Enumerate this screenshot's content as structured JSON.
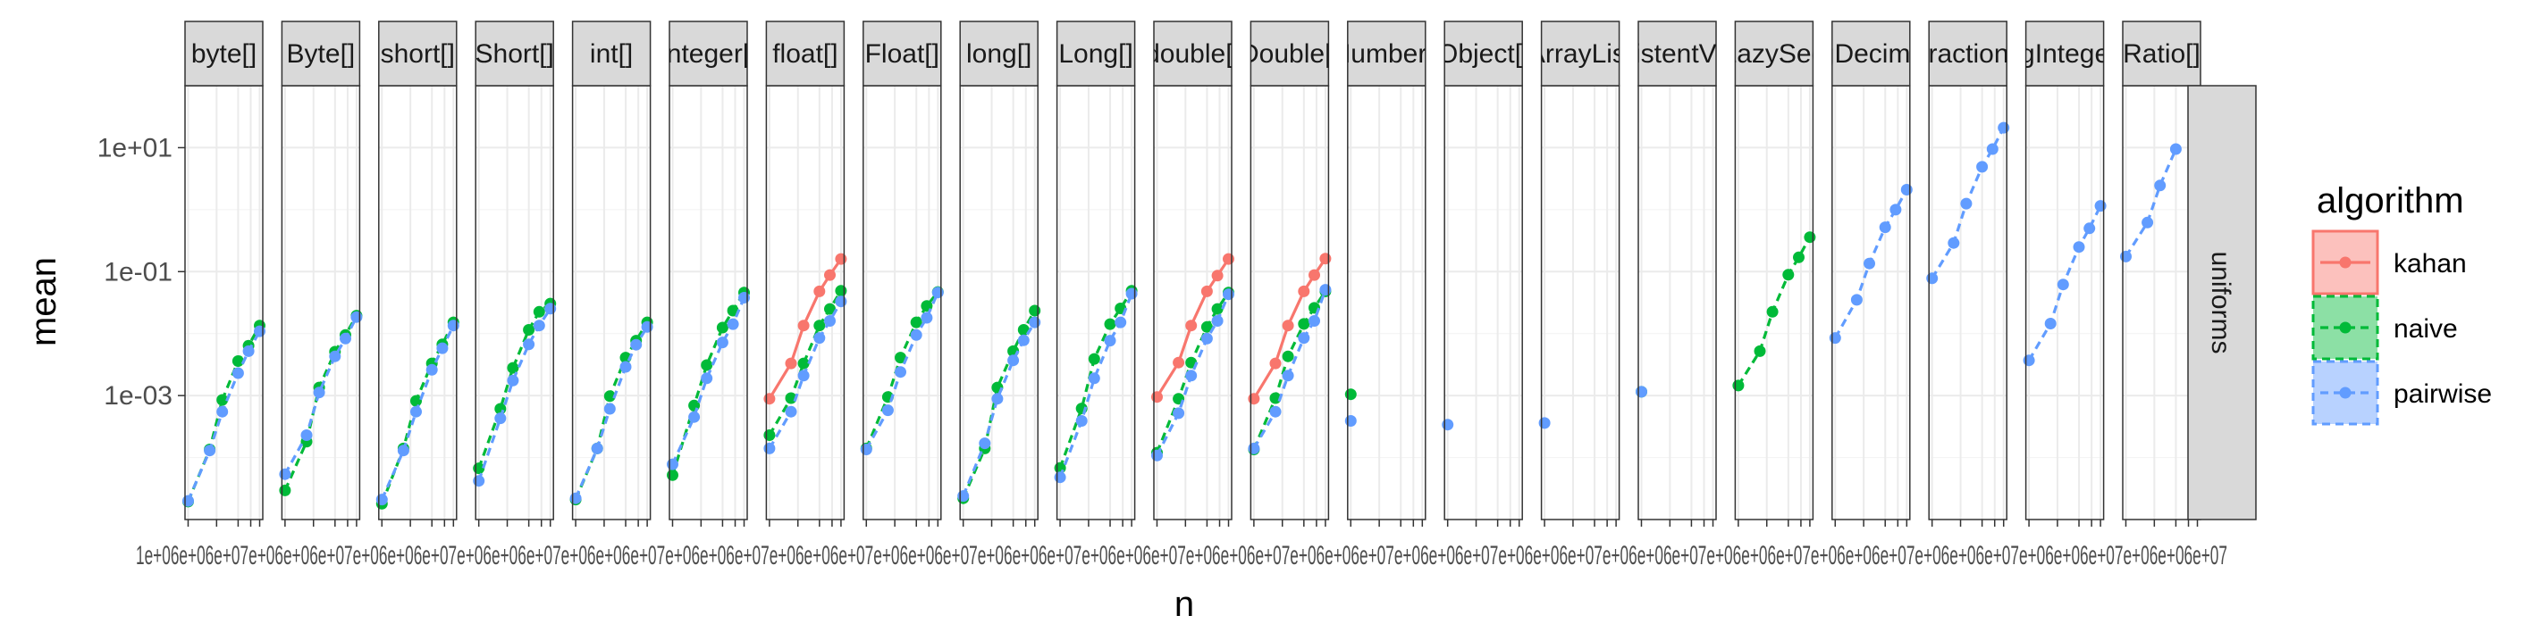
{
  "chart_data": {
    "type": "line",
    "xlabel": "n",
    "ylabel": "mean",
    "y_scale": "log10",
    "y_range": [
      1e-05,
      100
    ],
    "y_ticks": [
      0.001,
      0.1,
      10
    ],
    "y_tick_labels": [
      "1e-03",
      "1e-01",
      "1e+01"
    ],
    "x_scale": "log10",
    "x_range": [
      1000000,
      10000000
    ],
    "x_ticks": [
      1000000,
      2500000,
      5000000,
      7500000,
      10000000
    ],
    "x_tick_text": "1e+06e+06e+07e+06e+06e+07e+06e+06e+07e+06e+06e+07e+06e+06e+07e+06e+06e+07e+06e+06e+07e+06e+06e+07e+06e+06e+07e+06e+06e+07e+06e+06e+07e+06e+06e+07e+06e+06e+07e+06e+06e+07e+06e+06e+07e+06e+06e+07e+06e+06e+07e+06e+06e+07e+06e+06e+07e+06e+06e+07",
    "x_values": [
      1000000,
      2000000,
      3000000,
      5000000,
      7000000,
      10000000
    ],
    "row_strip": "uniforms",
    "legend": {
      "title": "algorithm",
      "position": "right",
      "entries": [
        "kahan",
        "naive",
        "pairwise"
      ]
    },
    "colors": {
      "kahan": "#F8766D",
      "naive": "#00BA38",
      "pairwise": "#619CFF"
    },
    "facets": [
      {
        "label": "byte[]",
        "series": [
          {
            "name": "naive",
            "values": [
              1.95e-05,
              0.000135,
              0.00085,
              0.0036,
              0.0064,
              0.0135
            ]
          },
          {
            "name": "pairwise",
            "values": [
              2e-05,
              0.00013,
              0.00055,
              0.0023,
              0.0052,
              0.0109
            ]
          }
        ]
      },
      {
        "label": "Byte[]",
        "series": [
          {
            "name": "naive",
            "values": [
              2.95e-05,
              0.00018,
              0.00135,
              0.0051,
              0.0095,
              0.0195
            ]
          },
          {
            "name": "pairwise",
            "values": [
              5.4e-05,
              0.00023,
              0.00112,
              0.0043,
              0.0083,
              0.0185
            ]
          }
        ]
      },
      {
        "label": "short[]",
        "series": [
          {
            "name": "naive",
            "values": [
              1.8e-05,
              0.00014,
              0.00082,
              0.0033,
              0.0067,
              0.0152
            ]
          },
          {
            "name": "pairwise",
            "values": [
              2.1e-05,
              0.00013,
              0.00055,
              0.0026,
              0.0058,
              0.0135
            ]
          }
        ]
      },
      {
        "label": "Short[]",
        "series": [
          {
            "name": "naive",
            "values": [
              6.7e-05,
              0.00061,
              0.0028,
              0.0115,
              0.0225,
              0.0305
            ]
          },
          {
            "name": "pairwise",
            "values": [
              4.2e-05,
              0.00043,
              0.00175,
              0.0067,
              0.0135,
              0.0252
            ]
          }
        ]
      },
      {
        "label": "int[]",
        "series": [
          {
            "name": "naive",
            "values": [
              2.1e-05,
              0.00014,
              0.00098,
              0.0041,
              0.0077,
              0.0152
            ]
          },
          {
            "name": "pairwise",
            "values": [
              2.2e-05,
              0.00014,
              0.00061,
              0.0029,
              0.0066,
              0.0128
            ]
          }
        ]
      },
      {
        "label": "Integer[]",
        "series": [
          {
            "name": "naive",
            "values": [
              5.2e-05,
              0.00069,
              0.0031,
              0.0125,
              0.0235,
              0.046
            ]
          },
          {
            "name": "pairwise",
            "values": [
              7.8e-05,
              0.00045,
              0.0019,
              0.0072,
              0.0142,
              0.038
            ]
          }
        ]
      },
      {
        "label": "float[]",
        "series": [
          {
            "name": "kahan",
            "values": [
              0.00089,
              0.0033,
              0.0135,
              0.048,
              0.088,
              0.16
            ]
          },
          {
            "name": "naive",
            "values": [
              0.00023,
              0.00091,
              0.0033,
              0.0135,
              0.025,
              0.049
            ]
          },
          {
            "name": "pairwise",
            "values": [
              0.00014,
              0.00055,
              0.0021,
              0.0085,
              0.016,
              0.033
            ]
          }
        ]
      },
      {
        "label": "Float[]",
        "series": [
          {
            "name": "naive",
            "values": [
              0.00014,
              0.00095,
              0.0041,
              0.0152,
              0.028,
              0.047
            ]
          },
          {
            "name": "pairwise",
            "values": [
              0.000135,
              0.00058,
              0.0024,
              0.0095,
              0.018,
              0.046
            ]
          }
        ]
      },
      {
        "label": "long[]",
        "series": [
          {
            "name": "naive",
            "values": [
              2.2e-05,
              0.00014,
              0.00135,
              0.0052,
              0.0115,
              0.0235
            ]
          },
          {
            "name": "pairwise",
            "values": [
              2.4e-05,
              0.00017,
              0.00089,
              0.0037,
              0.0078,
              0.0152
            ]
          }
        ]
      },
      {
        "label": "Long[]",
        "series": [
          {
            "name": "naive",
            "values": [
              6.8e-05,
              0.00062,
              0.0039,
              0.0142,
              0.0255,
              0.049
            ]
          },
          {
            "name": "pairwise",
            "values": [
              4.8e-05,
              0.00039,
              0.0019,
              0.0077,
              0.0152,
              0.044
            ]
          }
        ]
      },
      {
        "label": "double[]",
        "series": [
          {
            "name": "kahan",
            "values": [
              0.00095,
              0.0034,
              0.0135,
              0.048,
              0.086,
              0.16
            ]
          },
          {
            "name": "naive",
            "values": [
              0.00012,
              0.00089,
              0.0034,
              0.0128,
              0.025,
              0.046
            ]
          },
          {
            "name": "pairwise",
            "values": [
              0.000108,
              0.00052,
              0.0021,
              0.0083,
              0.016,
              0.043
            ]
          }
        ]
      },
      {
        "label": "Double[]",
        "series": [
          {
            "name": "kahan",
            "values": [
              0.00089,
              0.0033,
              0.0135,
              0.048,
              0.088,
              0.162
            ]
          },
          {
            "name": "naive",
            "values": [
              0.000135,
              0.00091,
              0.0043,
              0.0143,
              0.026,
              0.048
            ]
          },
          {
            "name": "pairwise",
            "values": [
              0.00014,
              0.00055,
              0.0021,
              0.0085,
              0.016,
              0.051
            ]
          }
        ]
      },
      {
        "label": "Number[]",
        "series": [
          {
            "name": "naive",
            "values": [
              0.00105
            ]
          },
          {
            "name": "pairwise",
            "values": [
              0.00039
            ]
          }
        ]
      },
      {
        "label": "Object[]",
        "series": [
          {
            "name": "pairwise",
            "values": [
              0.00034
            ]
          }
        ]
      },
      {
        "label": "ArrayList",
        "series": [
          {
            "name": "pairwise",
            "values": [
              0.00036
            ]
          }
        ]
      },
      {
        "label": "PersistentVector",
        "series": [
          {
            "name": "naive",
            "values": [
              0.00115
            ]
          },
          {
            "name": "pairwise",
            "values": [
              0.00115
            ]
          }
        ]
      },
      {
        "label": "LazySeq",
        "series": [
          {
            "name": "naive",
            "values": [
              0.00145,
              0.0052,
              0.0225,
              0.089,
              0.17,
              0.36
            ]
          }
        ]
      },
      {
        "label": "BigDecimal[]",
        "series": [
          {
            "name": "pairwise",
            "values": [
              0.0085,
              0.035,
              0.135,
              0.52,
              1.0,
              2.1
            ]
          }
        ]
      },
      {
        "label": "Fraction[]",
        "series": [
          {
            "name": "pairwise",
            "values": [
              0.078,
              0.29,
              1.25,
              4.9,
              9.5,
              21.0
            ]
          }
        ]
      },
      {
        "label": "BigInteger[]",
        "series": [
          {
            "name": "pairwise",
            "values": [
              0.0037,
              0.0145,
              0.062,
              0.25,
              0.5,
              1.15
            ]
          }
        ]
      },
      {
        "label": "Ratio[]",
        "series": [
          {
            "name": "pairwise",
            "values": [
              0.175,
              0.62,
              2.45,
              9.5
            ]
          }
        ]
      }
    ]
  }
}
